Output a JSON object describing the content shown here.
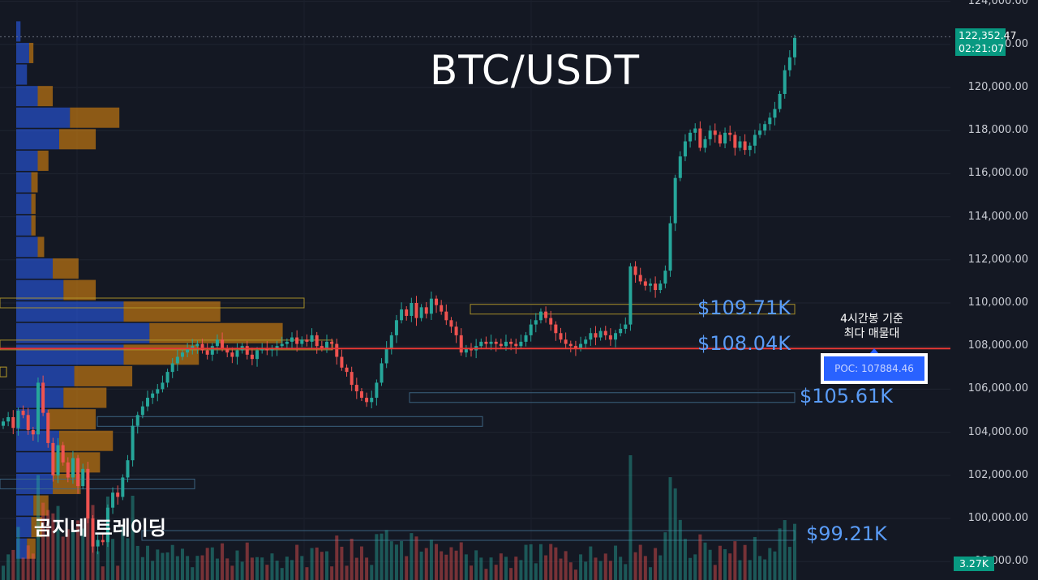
{
  "chart_data": {
    "type": "candlestick",
    "title": "BTC/USDT",
    "watermark": "곰지네 트레이딩",
    "y_axis": {
      "ticks": [
        98000,
        100000,
        102000,
        104000,
        106000,
        108000,
        110000,
        112000,
        114000,
        116000,
        118000,
        120000,
        122000,
        124000
      ],
      "tick_labels": [
        "98,000.00",
        "100,000.00",
        "102,000.00",
        "104,000.00",
        "106,000.00",
        "108,000.00",
        "110,000.00",
        "112,000.00",
        "114,000.00",
        "116,000.00",
        "118,000.00",
        "120,000.00",
        "122,000.00",
        "124,000.00"
      ],
      "range": [
        97800,
        124000
      ]
    },
    "last_price": {
      "value": 122352.47,
      "label": "122,352.47",
      "countdown": "02:21:07"
    },
    "last_volume_label": "3.27K",
    "poc": {
      "value": 107884.46,
      "label": "POC: 107884.46",
      "annotation_line1": "4시간봉 기준",
      "annotation_line2": "최다 매물대"
    },
    "levels": [
      {
        "value": 109710,
        "label": "$109.71K"
      },
      {
        "value": 108040,
        "label": "$108.04K"
      },
      {
        "value": 105610,
        "label": "$105.61K"
      },
      {
        "value": 99210,
        "label": "$99.21K"
      }
    ],
    "price_path": [
      104500,
      104700,
      104200,
      105000,
      104800,
      104100,
      103900,
      106300,
      104900,
      103500,
      102000,
      103400,
      102600,
      101900,
      102800,
      101500,
      102300,
      100000,
      98700,
      99000,
      98900,
      100500,
      101200,
      101000,
      101900,
      102700,
      104300,
      104800,
      105200,
      105600,
      105800,
      106000,
      106300,
      106800,
      107200,
      107500,
      107700,
      107900,
      108000,
      108100,
      107800,
      107600,
      108000,
      108300,
      107900,
      107700,
      107500,
      107800,
      108000,
      107600,
      107400,
      107800,
      107900,
      107800,
      107900,
      108000,
      108100,
      108200,
      108400,
      108100,
      108300,
      108200,
      108500,
      108000,
      107900,
      108200,
      108100,
      107500,
      107000,
      106800,
      106200,
      105900,
      105600,
      105400,
      105600,
      106300,
      107200,
      107900,
      108500,
      109200,
      109700,
      109400,
      110000,
      109300,
      109800,
      109500,
      110200,
      109900,
      109600,
      109200,
      108900,
      108500,
      107700,
      107900,
      107800,
      108000,
      108200,
      108100,
      108200,
      108100,
      108000,
      108200,
      108100,
      108000,
      108200,
      108500,
      109000,
      109200,
      109600,
      109300,
      109000,
      108600,
      108300,
      108100,
      108000,
      107900,
      108100,
      108300,
      108600,
      108400,
      108700,
      108500,
      108300,
      108600,
      108800,
      109000,
      111700,
      111300,
      111000,
      110800,
      110900,
      110600,
      110900,
      111500,
      113700,
      115800,
      116800,
      117500,
      117900,
      118100,
      117200,
      117600,
      118000,
      117800,
      117400,
      117900,
      117800,
      117200,
      117500,
      117100,
      117300,
      117800,
      118000,
      118300,
      118600,
      119000,
      119700,
      120800,
      121400,
      122300
    ],
    "volume_profile": [
      {
        "price": 122600,
        "buy": 0.02,
        "sell": 0.0
      },
      {
        "price": 121600,
        "buy": 0.06,
        "sell": 0.02
      },
      {
        "price": 120600,
        "buy": 0.05,
        "sell": 0.0
      },
      {
        "price": 119600,
        "buy": 0.1,
        "sell": 0.07
      },
      {
        "price": 118600,
        "buy": 0.25,
        "sell": 0.23
      },
      {
        "price": 117600,
        "buy": 0.2,
        "sell": 0.17
      },
      {
        "price": 116600,
        "buy": 0.1,
        "sell": 0.05
      },
      {
        "price": 115600,
        "buy": 0.07,
        "sell": 0.03
      },
      {
        "price": 114600,
        "buy": 0.07,
        "sell": 0.02
      },
      {
        "price": 113600,
        "buy": 0.07,
        "sell": 0.02
      },
      {
        "price": 112600,
        "buy": 0.1,
        "sell": 0.03
      },
      {
        "price": 111600,
        "buy": 0.17,
        "sell": 0.12
      },
      {
        "price": 110600,
        "buy": 0.22,
        "sell": 0.15
      },
      {
        "price": 109600,
        "buy": 0.5,
        "sell": 0.45
      },
      {
        "price": 108600,
        "buy": 0.62,
        "sell": 0.62
      },
      {
        "price": 107600,
        "buy": 0.5,
        "sell": 0.35
      },
      {
        "price": 106600,
        "buy": 0.27,
        "sell": 0.27
      },
      {
        "price": 105600,
        "buy": 0.22,
        "sell": 0.2
      },
      {
        "price": 104600,
        "buy": 0.15,
        "sell": 0.22
      },
      {
        "price": 103600,
        "buy": 0.2,
        "sell": 0.25
      },
      {
        "price": 102600,
        "buy": 0.17,
        "sell": 0.22
      },
      {
        "price": 101600,
        "buy": 0.17,
        "sell": 0.13
      },
      {
        "price": 100600,
        "buy": 0.08,
        "sell": 0.07
      },
      {
        "price": 99600,
        "buy": 0.07,
        "sell": 0.05
      },
      {
        "price": 98600,
        "buy": 0.05,
        "sell": 0.04
      }
    ],
    "colors": {
      "up": "#26a69a",
      "down": "#ef5350",
      "poc_line": "#e53935",
      "profile_buy": "#2962ff",
      "profile_sell": "#f0920c",
      "level_text": "#5a9cf7",
      "background": "#141823"
    }
  }
}
